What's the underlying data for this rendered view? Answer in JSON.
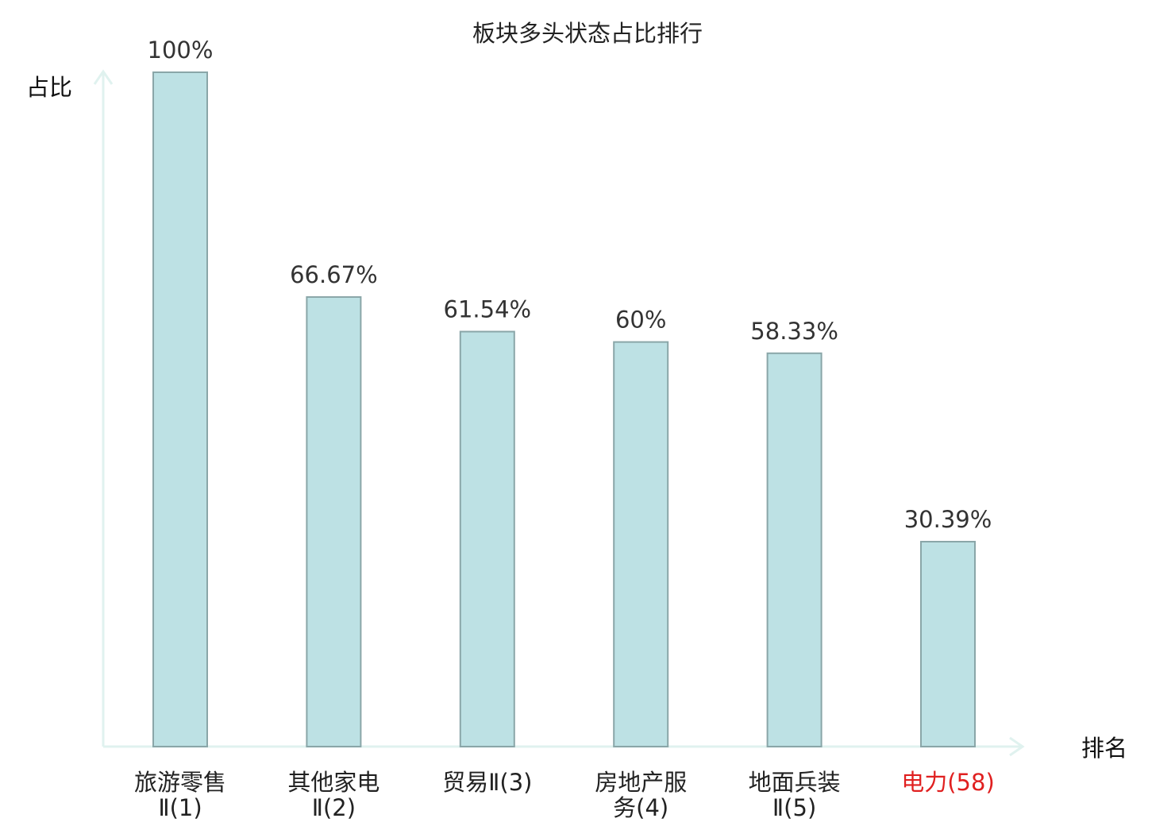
{
  "chart_data": {
    "type": "bar",
    "title": "板块多头状态占比排行",
    "ylabel": "占比",
    "xlabel": "排名",
    "ylim": [
      0,
      100
    ],
    "grid": false,
    "categories": [
      {
        "lines": [
          "旅游零售",
          "Ⅱ(1)"
        ],
        "highlight": false
      },
      {
        "lines": [
          "其他家电",
          "Ⅱ(2)"
        ],
        "highlight": false
      },
      {
        "lines": [
          "贸易Ⅱ(3)"
        ],
        "highlight": false
      },
      {
        "lines": [
          "房地产服",
          "务(4)"
        ],
        "highlight": false
      },
      {
        "lines": [
          "地面兵装",
          "Ⅱ(5)"
        ],
        "highlight": false
      },
      {
        "lines": [
          "电力(58)"
        ],
        "highlight": true
      }
    ],
    "values": [
      100,
      66.67,
      61.54,
      60,
      58.33,
      30.39
    ],
    "value_labels": [
      "100%",
      "66.67%",
      "61.54%",
      "60%",
      "58.33%",
      "30.39%"
    ],
    "colors": {
      "bar_fill": "#bde1e4",
      "bar_stroke": "#8aa6a8",
      "axis": "#e0f2ef",
      "highlight_label": "#e02020"
    }
  }
}
